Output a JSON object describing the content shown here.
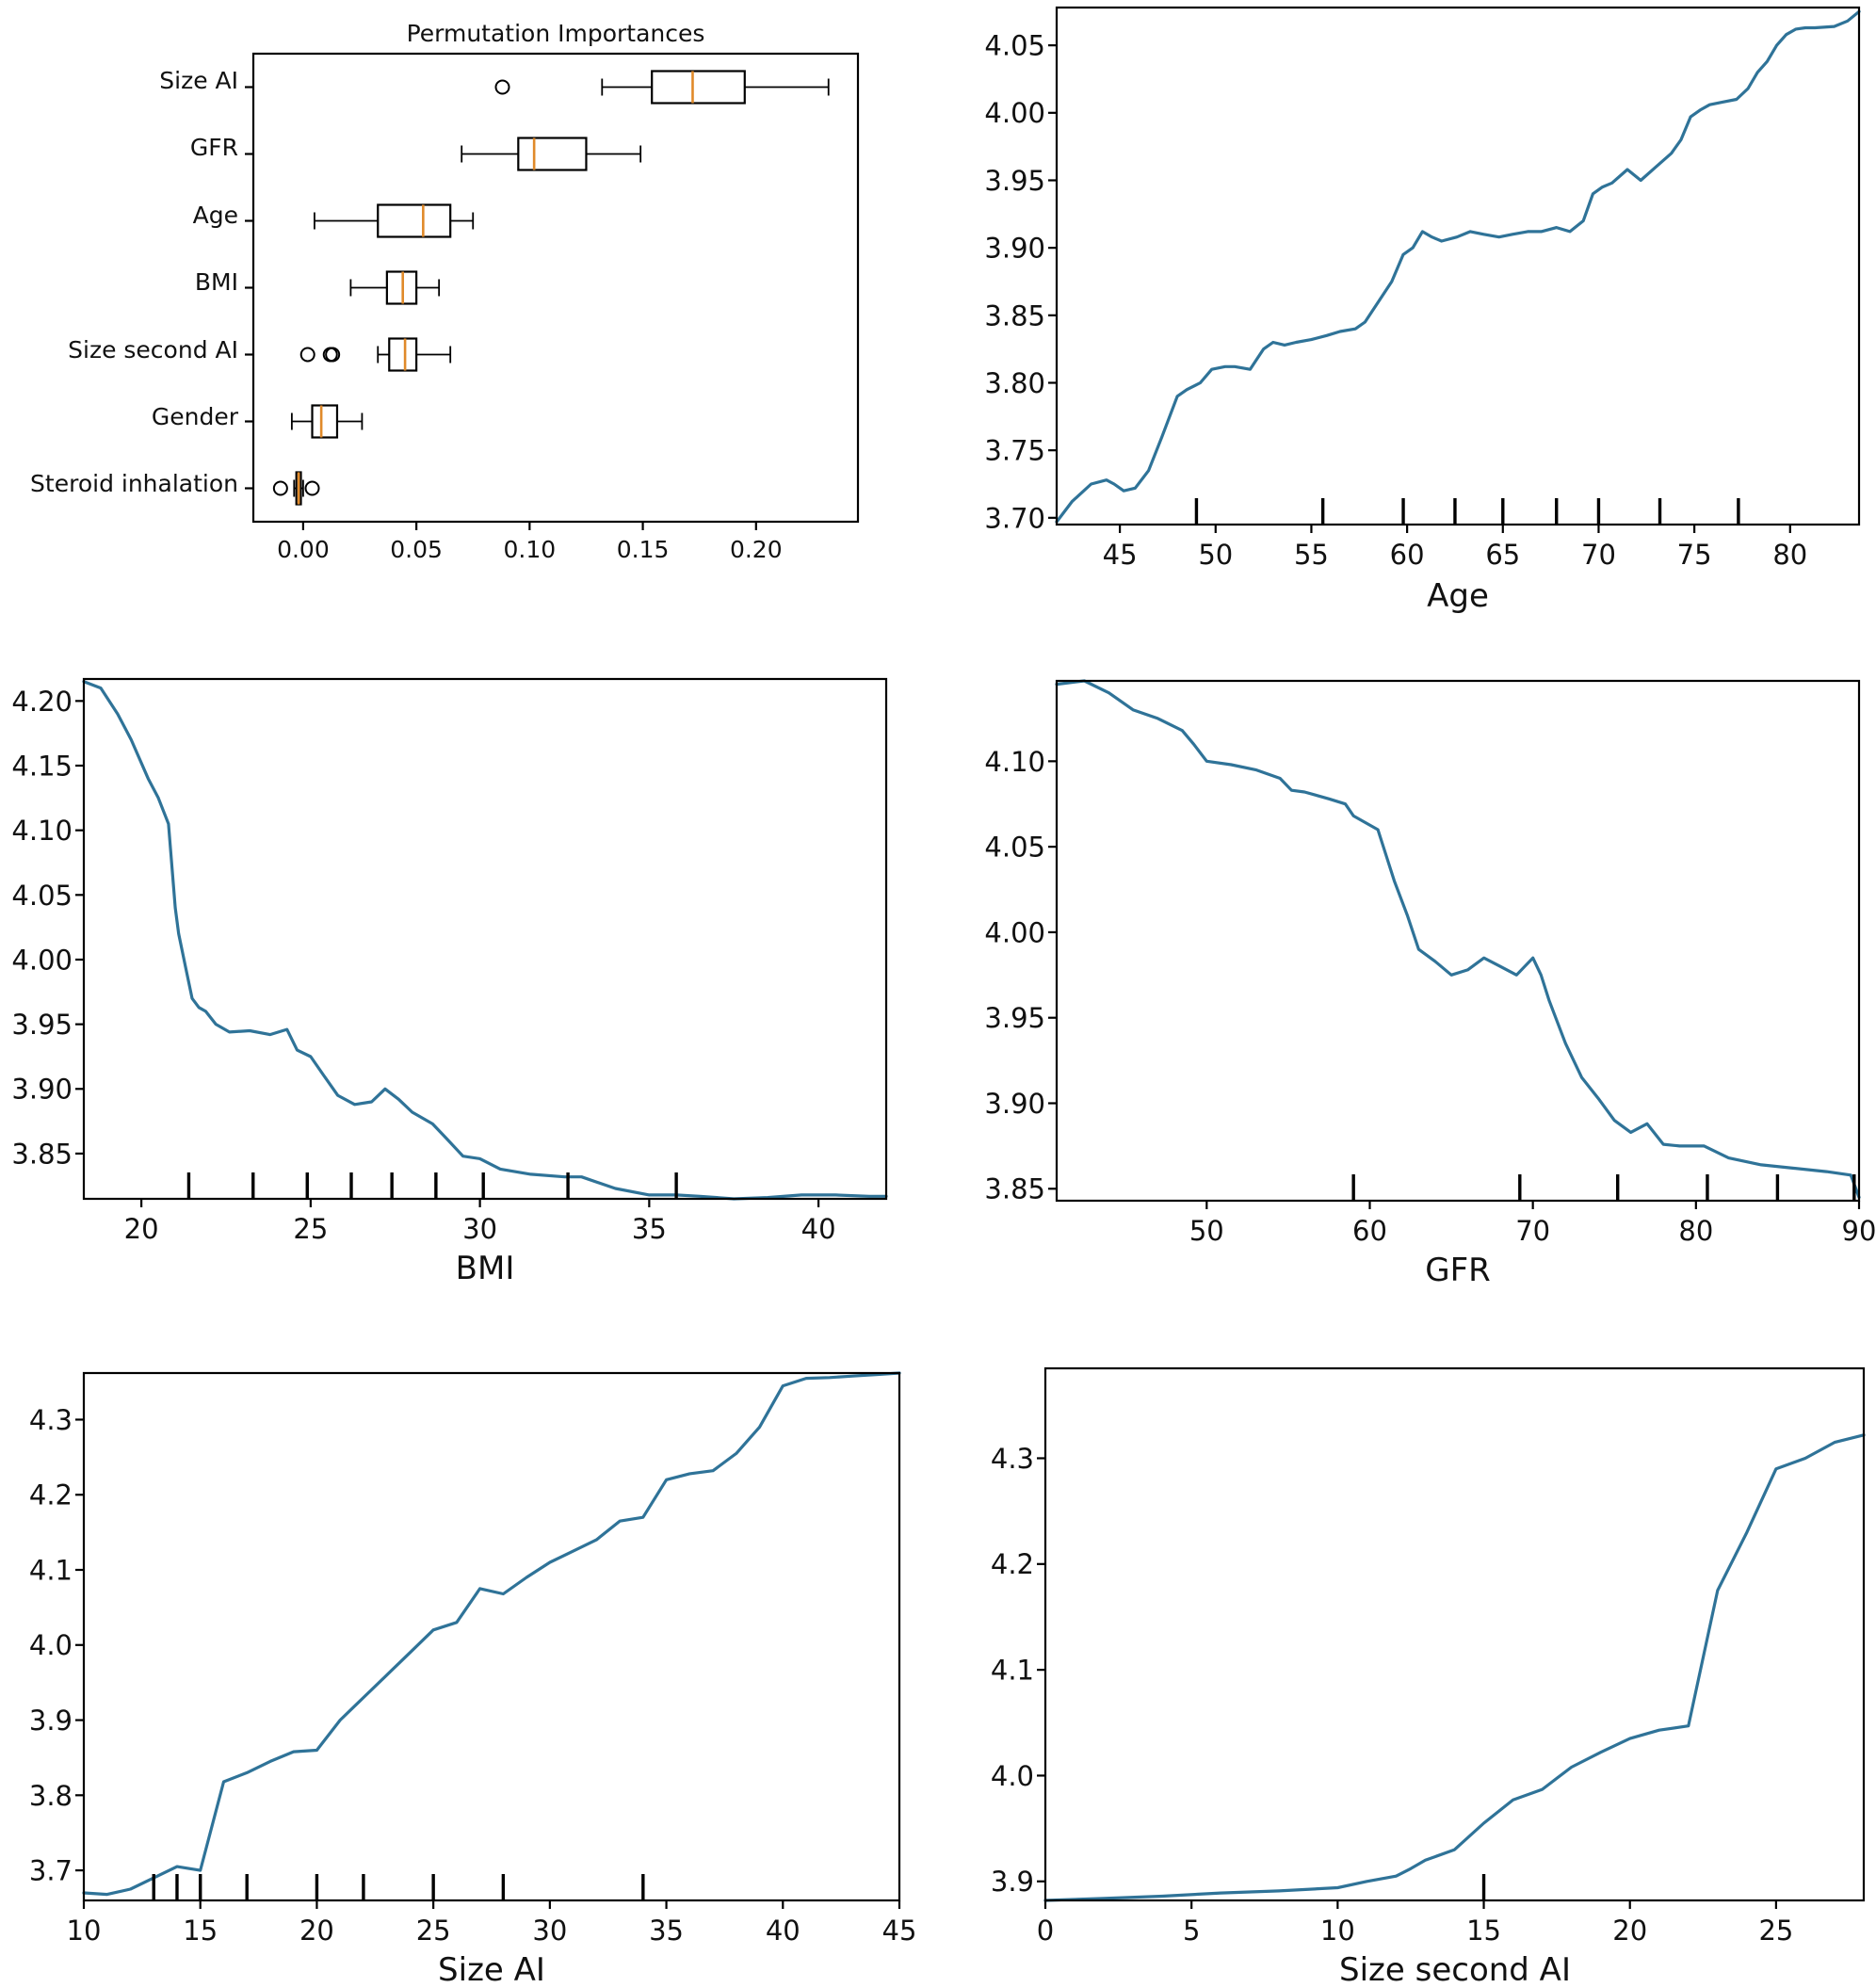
{
  "chart_data": [
    {
      "id": "importances",
      "type": "box",
      "title": "Permutation Importances",
      "xlabel": "",
      "ylabel": "",
      "xlim": [
        -0.022,
        0.245
      ],
      "xticks": [
        0.0,
        0.05,
        0.1,
        0.15,
        0.2
      ],
      "xtick_labels": [
        "0.00",
        "0.05",
        "0.10",
        "0.15",
        "0.20"
      ],
      "categories": [
        "Size AI",
        "GFR",
        "Age",
        "BMI",
        "Size second AI",
        "Gender",
        "Steroid inhalation"
      ],
      "boxes": [
        {
          "whislo": 0.132,
          "q1": 0.154,
          "med": 0.172,
          "q3": 0.195,
          "whishi": 0.232,
          "fliers": [
            0.088
          ]
        },
        {
          "whislo": 0.07,
          "q1": 0.095,
          "med": 0.102,
          "q3": 0.125,
          "whishi": 0.149,
          "fliers": []
        },
        {
          "whislo": 0.005,
          "q1": 0.033,
          "med": 0.053,
          "q3": 0.065,
          "whishi": 0.075,
          "fliers": []
        },
        {
          "whislo": 0.021,
          "q1": 0.037,
          "med": 0.044,
          "q3": 0.05,
          "whishi": 0.06,
          "fliers": []
        },
        {
          "whislo": 0.033,
          "q1": 0.038,
          "med": 0.045,
          "q3": 0.05,
          "whishi": 0.065,
          "fliers": [
            0.002,
            0.012,
            0.013
          ]
        },
        {
          "whislo": -0.005,
          "q1": 0.004,
          "med": 0.008,
          "q3": 0.015,
          "whishi": 0.026,
          "fliers": []
        },
        {
          "whislo": -0.004,
          "q1": -0.003,
          "med": -0.002,
          "q3": -0.001,
          "whishi": 0.0,
          "fliers": [
            -0.01,
            0.004
          ]
        }
      ]
    },
    {
      "id": "pd-age",
      "type": "line",
      "title": "",
      "xlabel": "Age",
      "ylabel": "",
      "xlim": [
        41.7,
        83.6
      ],
      "ylim": [
        3.695,
        4.078
      ],
      "xticks": [
        45,
        50,
        55,
        60,
        65,
        70,
        75,
        80
      ],
      "xtick_labels": [
        "45",
        "50",
        "55",
        "60",
        "65",
        "70",
        "75",
        "80"
      ],
      "yticks": [
        3.7,
        3.75,
        3.8,
        3.85,
        3.9,
        3.95,
        4.0,
        4.05
      ],
      "ytick_labels": [
        "3.70",
        "3.75",
        "3.80",
        "3.85",
        "3.90",
        "3.95",
        "4.00",
        "4.05"
      ],
      "x": [
        41.7,
        42.5,
        43.5,
        44.3,
        44.7,
        45.2,
        45.8,
        46.5,
        47.2,
        48.0,
        48.5,
        49.2,
        49.8,
        50.5,
        51.0,
        51.8,
        52.5,
        53.0,
        53.6,
        54.2,
        55.0,
        55.8,
        56.5,
        57.3,
        57.8,
        58.5,
        59.2,
        59.8,
        60.3,
        60.8,
        61.3,
        61.8,
        62.6,
        63.3,
        64.0,
        64.8,
        65.5,
        66.3,
        67.0,
        67.8,
        68.5,
        69.2,
        69.7,
        70.2,
        70.7,
        71.5,
        72.2,
        73.0,
        73.8,
        74.3,
        74.8,
        75.3,
        75.8,
        76.5,
        77.2,
        77.8,
        78.3,
        78.8,
        79.3,
        79.8,
        80.3,
        80.8,
        81.3,
        82.3,
        83.0,
        83.6
      ],
      "y": [
        3.697,
        3.712,
        3.725,
        3.728,
        3.725,
        3.72,
        3.722,
        3.735,
        3.76,
        3.79,
        3.795,
        3.8,
        3.81,
        3.812,
        3.812,
        3.81,
        3.825,
        3.83,
        3.828,
        3.83,
        3.832,
        3.835,
        3.838,
        3.84,
        3.845,
        3.86,
        3.875,
        3.895,
        3.9,
        3.912,
        3.908,
        3.905,
        3.908,
        3.912,
        3.91,
        3.908,
        3.91,
        3.912,
        3.912,
        3.915,
        3.912,
        3.92,
        3.94,
        3.945,
        3.948,
        3.958,
        3.95,
        3.96,
        3.97,
        3.98,
        3.997,
        4.002,
        4.006,
        4.008,
        4.01,
        4.018,
        4.03,
        4.038,
        4.05,
        4.058,
        4.062,
        4.063,
        4.063,
        4.064,
        4.068,
        4.075
      ],
      "rug": [
        49.0,
        55.6,
        59.8,
        62.5,
        65.0,
        67.8,
        70.0,
        73.2,
        77.3
      ]
    },
    {
      "id": "pd-bmi",
      "type": "line",
      "title": "",
      "xlabel": "BMI",
      "ylabel": "",
      "xlim": [
        18.3,
        42.0
      ],
      "ylim": [
        3.815,
        4.217
      ],
      "xticks": [
        20,
        25,
        30,
        35,
        40
      ],
      "xtick_labels": [
        "20",
        "25",
        "30",
        "35",
        "40"
      ],
      "yticks": [
        3.85,
        3.9,
        3.95,
        4.0,
        4.05,
        4.1,
        4.15,
        4.2
      ],
      "ytick_labels": [
        "3.85",
        "3.90",
        "3.95",
        "4.00",
        "4.05",
        "4.10",
        "4.15",
        "4.20"
      ],
      "x": [
        18.3,
        18.8,
        19.3,
        19.7,
        20.2,
        20.5,
        20.8,
        21.0,
        21.1,
        21.3,
        21.5,
        21.7,
        21.9,
        22.2,
        22.6,
        23.2,
        23.8,
        24.3,
        24.6,
        25.0,
        25.4,
        25.8,
        26.3,
        26.8,
        27.2,
        27.6,
        28.0,
        28.6,
        29.0,
        29.5,
        30.0,
        30.6,
        31.5,
        32.5,
        33.0,
        34.0,
        35.0,
        35.8,
        36.5,
        37.5,
        38.5,
        39.5,
        40.5,
        41.5,
        42.0
      ],
      "y": [
        4.215,
        4.21,
        4.19,
        4.17,
        4.14,
        4.125,
        4.105,
        4.04,
        4.02,
        3.995,
        3.97,
        3.963,
        3.96,
        3.95,
        3.944,
        3.945,
        3.942,
        3.946,
        3.93,
        3.925,
        3.91,
        3.895,
        3.888,
        3.89,
        3.9,
        3.892,
        3.882,
        3.873,
        3.862,
        3.848,
        3.846,
        3.838,
        3.834,
        3.832,
        3.832,
        3.823,
        3.818,
        3.818,
        3.817,
        3.815,
        3.816,
        3.818,
        3.818,
        3.817,
        3.817
      ],
      "rug": [
        21.4,
        23.3,
        24.9,
        26.2,
        27.4,
        28.7,
        30.1,
        32.6,
        35.8
      ]
    },
    {
      "id": "pd-gfr",
      "type": "line",
      "title": "",
      "xlabel": "GFR",
      "ylabel": "",
      "xlim": [
        40.8,
        90.0
      ],
      "ylim": [
        3.843,
        4.147
      ],
      "xticks": [
        50,
        60,
        70,
        80,
        90
      ],
      "xtick_labels": [
        "50",
        "60",
        "70",
        "80",
        "90"
      ],
      "yticks": [
        3.85,
        3.9,
        3.95,
        4.0,
        4.05,
        4.1
      ],
      "ytick_labels": [
        "3.85",
        "3.90",
        "3.95",
        "4.00",
        "4.05",
        "4.10"
      ],
      "x": [
        40.8,
        42.5,
        44.0,
        45.5,
        47.0,
        48.5,
        49.2,
        50.0,
        51.5,
        53.0,
        54.5,
        55.2,
        56.0,
        57.5,
        58.5,
        59.0,
        60.5,
        61.0,
        61.5,
        62.3,
        63.0,
        64.0,
        65.0,
        66.0,
        67.0,
        68.0,
        69.0,
        70.0,
        70.5,
        71.0,
        72.0,
        73.0,
        74.0,
        75.0,
        76.0,
        77.0,
        78.0,
        79.0,
        80.5,
        82.0,
        84.0,
        86.0,
        88.0,
        89.5,
        90.0
      ],
      "y": [
        4.145,
        4.147,
        4.14,
        4.13,
        4.125,
        4.118,
        4.11,
        4.1,
        4.098,
        4.095,
        4.09,
        4.083,
        4.082,
        4.078,
        4.075,
        4.068,
        4.06,
        4.045,
        4.03,
        4.01,
        3.99,
        3.983,
        3.975,
        3.978,
        3.985,
        3.98,
        3.975,
        3.985,
        3.975,
        3.96,
        3.935,
        3.915,
        3.903,
        3.89,
        3.883,
        3.888,
        3.876,
        3.875,
        3.875,
        3.868,
        3.864,
        3.862,
        3.86,
        3.858,
        3.845
      ],
      "rug": [
        59.0,
        69.2,
        75.2,
        80.7,
        85.0,
        89.7
      ]
    },
    {
      "id": "pd-size-ai",
      "type": "line",
      "title": "",
      "xlabel": "Size AI",
      "ylabel": "",
      "xlim": [
        10,
        45
      ],
      "ylim": [
        3.66,
        4.362
      ],
      "xticks": [
        10,
        15,
        20,
        25,
        30,
        35,
        40,
        45
      ],
      "xtick_labels": [
        "10",
        "15",
        "20",
        "25",
        "30",
        "35",
        "40",
        "45"
      ],
      "yticks": [
        3.7,
        3.8,
        3.9,
        4.0,
        4.1,
        4.2,
        4.3
      ],
      "ytick_labels": [
        "3.7",
        "3.8",
        "3.9",
        "4.0",
        "4.1",
        "4.2",
        "4.3"
      ],
      "x": [
        10,
        11,
        12,
        13,
        14,
        15,
        16,
        17,
        18,
        19,
        20,
        21,
        22,
        23,
        24,
        25,
        26,
        27,
        28,
        29,
        30,
        31,
        32,
        33,
        34,
        35,
        36,
        37,
        38,
        39,
        40,
        41,
        42,
        43,
        44,
        45
      ],
      "y": [
        3.67,
        3.668,
        3.675,
        3.69,
        3.705,
        3.7,
        3.818,
        3.83,
        3.845,
        3.858,
        3.86,
        3.9,
        3.93,
        3.96,
        3.99,
        4.02,
        4.03,
        4.075,
        4.068,
        4.09,
        4.11,
        4.125,
        4.14,
        4.165,
        4.17,
        4.22,
        4.228,
        4.232,
        4.255,
        4.29,
        4.345,
        4.355,
        4.356,
        4.358,
        4.36,
        4.362
      ],
      "rug": [
        13.0,
        14.0,
        15.0,
        17.0,
        20.0,
        22.0,
        25.0,
        28.0,
        34.0
      ]
    },
    {
      "id": "pd-size-second-ai",
      "type": "line",
      "title": "",
      "xlabel": "Size second AI",
      "ylabel": "",
      "xlim": [
        0,
        28
      ],
      "ylim": [
        3.882,
        4.385
      ],
      "xticks": [
        0,
        5,
        10,
        15,
        20,
        25
      ],
      "xtick_labels": [
        "0",
        "5",
        "10",
        "15",
        "20",
        "25"
      ],
      "yticks": [
        3.9,
        4.0,
        4.1,
        4.2,
        4.3
      ],
      "ytick_labels": [
        "3.9",
        "4.0",
        "4.1",
        "4.2",
        "4.3"
      ],
      "x": [
        0,
        2,
        4,
        6,
        8,
        10,
        11,
        12,
        12.5,
        13,
        14,
        15,
        16,
        17,
        18,
        19,
        20,
        21,
        22,
        23,
        24,
        25,
        26,
        27,
        28
      ],
      "y": [
        3.882,
        3.884,
        3.886,
        3.889,
        3.891,
        3.894,
        3.9,
        3.905,
        3.912,
        3.92,
        3.93,
        3.955,
        3.977,
        3.987,
        4.008,
        4.022,
        4.035,
        4.043,
        4.047,
        4.175,
        4.23,
        4.29,
        4.3,
        4.315,
        4.322
      ],
      "rug": [
        15.0
      ]
    }
  ]
}
